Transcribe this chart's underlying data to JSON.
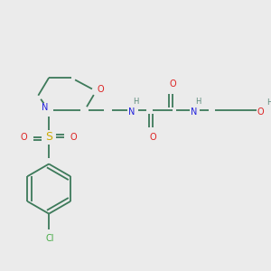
{
  "bg": "#ebebeb",
  "bond_color": "#3d7a5a",
  "colors": {
    "N": "#2222dd",
    "O": "#dd2222",
    "S": "#ccaa00",
    "Cl": "#44aa44",
    "C": "#3d7a5a",
    "H": "#5a8a7a"
  },
  "fs": 7.0,
  "lw": 1.3,
  "dpi": 100,
  "figsize": [
    3.0,
    3.0
  ]
}
